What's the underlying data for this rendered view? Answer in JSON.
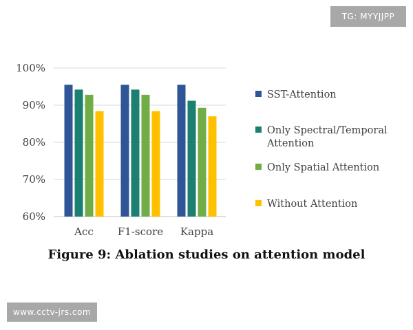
{
  "watermarks": {
    "top_right": "TG: MYYJJPP",
    "bottom_left": "www.cctv-jrs.com"
  },
  "caption": "Figure 9: Ablation studies on attention model",
  "colors": {
    "SST-Attention": "#2f5597",
    "Only Spectral/Temporal Attention": "#1b8072",
    "Only Spatial Attention": "#71ad47",
    "Without Attention": "#ffc000"
  },
  "chart_data": {
    "type": "bar",
    "title": "",
    "xlabel": "",
    "ylabel": "",
    "categories": [
      "Acc",
      "F1-score",
      "Kappa"
    ],
    "y_tick_labels": [
      "60%",
      "70%",
      "80%",
      "90%",
      "100%"
    ],
    "y_ticks": [
      60,
      70,
      80,
      90,
      100
    ],
    "ylim": [
      60,
      100
    ],
    "grid": true,
    "legend_position": "right",
    "series": [
      {
        "name": "SST-Attention",
        "legend_lines": [
          "SST-Attention"
        ],
        "values": [
          95.5,
          95.5,
          95.5
        ]
      },
      {
        "name": "Only Spectral/Temporal Attention",
        "legend_lines": [
          "Only Spectral/Temporal",
          "Attention"
        ],
        "values": [
          94.2,
          94.2,
          91.2
        ]
      },
      {
        "name": "Only Spatial Attention",
        "legend_lines": [
          "Only Spatial Attention"
        ],
        "values": [
          92.8,
          92.8,
          89.3
        ]
      },
      {
        "name": "Without Attention",
        "legend_lines": [
          "Without Attention"
        ],
        "values": [
          88.4,
          88.4,
          87.0
        ]
      }
    ]
  }
}
